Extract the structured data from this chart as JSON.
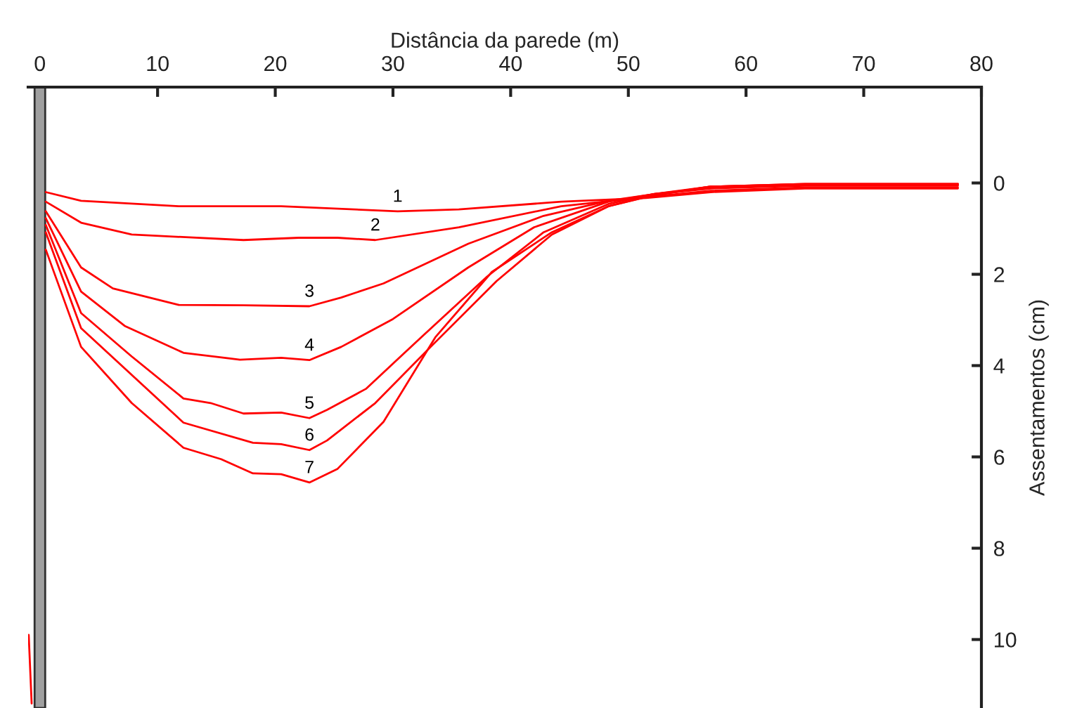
{
  "chart_data": {
    "type": "line",
    "xlabel": "Distância da parede (m)",
    "ylabel": "Assentamentos (cm)",
    "xlim": [
      -1,
      80
    ],
    "xticks": [
      0,
      10,
      20,
      30,
      40,
      50,
      60,
      70,
      80
    ],
    "ylim": [
      11.5,
      -2.1
    ],
    "yticks": [
      0,
      2,
      4,
      6,
      8,
      10
    ],
    "grid": false,
    "line_style": "solid",
    "series": [
      {
        "name": "1",
        "color": "#ff0000",
        "x": [
          0.5,
          3.5,
          11.8,
          20.5,
          30.4,
          35.6,
          44.3,
          51.5,
          57,
          65,
          78
        ],
        "values": [
          0.2,
          0.39,
          0.51,
          0.51,
          0.62,
          0.58,
          0.41,
          0.33,
          0.2,
          0.12,
          0.12
        ]
      },
      {
        "name": "2",
        "color": "#ff0000",
        "x": [
          0.5,
          3.5,
          7.8,
          17.3,
          22,
          25.3,
          28.5,
          35.6,
          44.3,
          51.5,
          57,
          65,
          78
        ],
        "values": [
          0.41,
          0.87,
          1.13,
          1.25,
          1.2,
          1.2,
          1.25,
          0.97,
          0.51,
          0.31,
          0.17,
          0.1,
          0.1
        ]
      },
      {
        "name": "3",
        "color": "#ff0000",
        "x": [
          0.5,
          3.5,
          6.2,
          11.8,
          17.3,
          22.9,
          25.6,
          29.2,
          36.4,
          42.8,
          48.3,
          52,
          57,
          65,
          78
        ],
        "values": [
          0.62,
          1.85,
          2.31,
          2.67,
          2.68,
          2.7,
          2.51,
          2.2,
          1.33,
          0.72,
          0.39,
          0.25,
          0.12,
          0.06,
          0.06
        ]
      },
      {
        "name": "4",
        "color": "#ff0000",
        "x": [
          0.5,
          3.5,
          7.2,
          12.2,
          17,
          20.5,
          22.9,
          25.6,
          30,
          36.4,
          42,
          48.3,
          52,
          57,
          65,
          78
        ],
        "values": [
          0.77,
          2.38,
          3.13,
          3.72,
          3.87,
          3.83,
          3.88,
          3.59,
          2.98,
          1.85,
          0.97,
          0.41,
          0.25,
          0.1,
          0.04,
          0.04
        ]
      },
      {
        "name": "5",
        "color": "#ff0000",
        "x": [
          0.5,
          3.5,
          7.8,
          12.2,
          14.5,
          17.3,
          20.5,
          22.9,
          24.4,
          27.7,
          32.4,
          38,
          42.8,
          48.3,
          52,
          57,
          65,
          78
        ],
        "values": [
          0.92,
          2.85,
          3.8,
          4.72,
          4.82,
          5.05,
          5.03,
          5.15,
          4.97,
          4.51,
          3.38,
          2.05,
          1.08,
          0.46,
          0.25,
          0.08,
          0.03,
          0.03
        ]
      },
      {
        "name": "6",
        "color": "#ff0000",
        "x": [
          0.5,
          3.5,
          12.2,
          18.1,
          20.5,
          22.9,
          24.4,
          28.5,
          33.2,
          38.8,
          43.5,
          48.3,
          52,
          57,
          65,
          78
        ],
        "values": [
          1.08,
          3.18,
          5.25,
          5.69,
          5.72,
          5.85,
          5.64,
          4.82,
          3.59,
          2.15,
          1.13,
          0.51,
          0.27,
          0.08,
          0.02,
          0.02
        ]
      },
      {
        "name": "7",
        "color": "#ff0000",
        "x": [
          0.5,
          3.5,
          7.8,
          12.2,
          15.4,
          18.1,
          20.5,
          22.9,
          25.3,
          29.2,
          33.6,
          38.4,
          43.5,
          48.3,
          52,
          57,
          65,
          78
        ],
        "values": [
          1.46,
          3.59,
          4.82,
          5.8,
          6.05,
          6.36,
          6.38,
          6.56,
          6.26,
          5.23,
          3.38,
          1.95,
          1.08,
          0.51,
          0.28,
          0.08,
          0.02,
          0.02
        ]
      },
      {
        "color": "#ff0000",
        "x": [
          -0.95,
          -0.7
        ],
        "values": [
          9.9,
          11.4
        ]
      }
    ]
  }
}
